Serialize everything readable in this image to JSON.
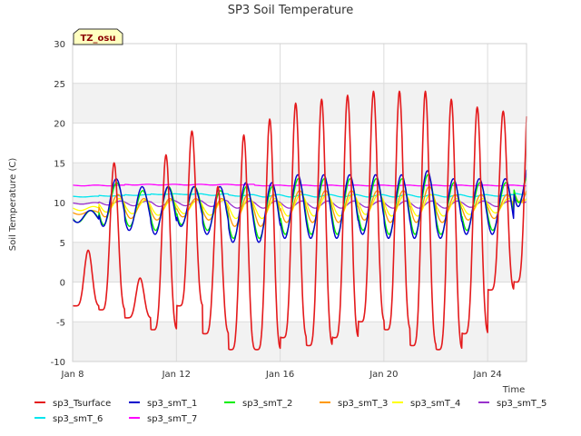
{
  "chart_data": {
    "type": "line",
    "title": "SP3 Soil Temperature",
    "xlabel": "Time",
    "ylabel": "Soil Temperature (C)",
    "badge": "TZ_osu",
    "ylim": [
      -10,
      30
    ],
    "yticks": [
      -10,
      -5,
      0,
      5,
      10,
      15,
      20,
      25,
      30
    ],
    "xlim": [
      8.0,
      25.5
    ],
    "xticks": [
      {
        "value": 8,
        "label": "Jan 8"
      },
      {
        "value": 12,
        "label": "Jan 12"
      },
      {
        "value": 16,
        "label": "Jan 16"
      },
      {
        "value": 20,
        "label": "Jan 20"
      },
      {
        "value": 24,
        "label": "Jan 24"
      }
    ],
    "grid": true,
    "legend_position": "bottom",
    "days": [
      8,
      9,
      10,
      11,
      12,
      13,
      14,
      15,
      16,
      17,
      18,
      19,
      20,
      21,
      22,
      23,
      24,
      25
    ],
    "series": [
      {
        "name": "sp3_Tsurface",
        "color": "#e41a1c",
        "daily_max": [
          4,
          15,
          0.5,
          16,
          19,
          12,
          18.5,
          20.5,
          22.5,
          23,
          23.5,
          24,
          24,
          24,
          23,
          22,
          21.5,
          26
        ],
        "daily_min": [
          -3,
          -3.5,
          -4.5,
          -6,
          -3,
          -6.5,
          -8.5,
          -8.5,
          -7,
          -8,
          -7,
          -5,
          -6,
          -8,
          -8.5,
          -6.5,
          -1,
          0
        ]
      },
      {
        "name": "sp3_smT_1",
        "color": "#0000cc",
        "daily_max": [
          9,
          13,
          12,
          12,
          12,
          12,
          12.5,
          12.5,
          13.5,
          13.5,
          13.5,
          13.5,
          13.5,
          14,
          13,
          13,
          13,
          16
        ],
        "daily_min": [
          7.5,
          7,
          6.5,
          6,
          7,
          6,
          5,
          5,
          5.5,
          5.5,
          5.5,
          6,
          5.5,
          5.5,
          5.5,
          6,
          6,
          9.5
        ]
      },
      {
        "name": "sp3_smT_2",
        "color": "#00ee00",
        "daily_max": [
          9,
          12.5,
          11.5,
          12,
          12,
          11.5,
          12,
          12,
          13,
          13,
          13,
          13,
          13,
          13.5,
          12.5,
          12.5,
          12.5,
          15.5
        ],
        "daily_min": [
          7.5,
          7.2,
          7,
          6.5,
          7.2,
          6.5,
          5.5,
          5.5,
          6,
          6,
          6,
          6.5,
          6,
          6,
          6,
          6.5,
          6.5,
          10
        ]
      },
      {
        "name": "sp3_smT_3",
        "color": "#ff9900",
        "daily_max": [
          9,
          11,
          10.5,
          10.5,
          10.5,
          10.5,
          11,
          11,
          11.5,
          11.5,
          11.5,
          11.5,
          11.5,
          12,
          11,
          11,
          11,
          13
        ],
        "daily_min": [
          8.5,
          8.2,
          8,
          7.8,
          8.2,
          7.8,
          7,
          7,
          7.5,
          7.5,
          7.5,
          7.8,
          7.5,
          7.5,
          7.5,
          7.8,
          8,
          10
        ]
      },
      {
        "name": "sp3_smT_4",
        "color": "#ffff00",
        "daily_max": [
          9.5,
          10.5,
          10.3,
          10.3,
          10.3,
          10.3,
          10.5,
          10.5,
          11,
          11,
          11,
          11,
          11,
          11,
          10.5,
          10.5,
          10.5,
          11.5
        ],
        "daily_min": [
          9,
          8.8,
          8.6,
          8.4,
          8.6,
          8.4,
          8,
          8,
          8.3,
          8.3,
          8.3,
          8.5,
          8.3,
          8.3,
          8.3,
          8.5,
          8.7,
          10
        ]
      },
      {
        "name": "sp3_smT_5",
        "color": "#9932cc",
        "daily_max": [
          10,
          10.2,
          10.2,
          10.3,
          10.3,
          10.3,
          10.2,
          10.2,
          10.2,
          10.2,
          10.2,
          10.2,
          10.2,
          10.2,
          10.2,
          10.2,
          10.2,
          10.5
        ],
        "daily_min": [
          9.8,
          9.7,
          9.6,
          9.5,
          9.6,
          9.5,
          9.3,
          9.3,
          9.3,
          9.3,
          9.3,
          9.4,
          9.3,
          9.3,
          9.3,
          9.4,
          9.5,
          10
        ]
      },
      {
        "name": "sp3_smT_6",
        "color": "#00e5ee",
        "daily_max": [
          10.8,
          10.9,
          11,
          11.1,
          11.1,
          11.1,
          11,
          11,
          11,
          11,
          11,
          11,
          11,
          11,
          11,
          11,
          11,
          11.2
        ],
        "daily_min": [
          10.7,
          10.8,
          10.9,
          11,
          11,
          10.9,
          10.8,
          10.7,
          10.7,
          10.7,
          10.7,
          10.7,
          10.7,
          10.7,
          10.7,
          10.7,
          10.8,
          11
        ]
      },
      {
        "name": "sp3_smT_7",
        "color": "#ff00ff",
        "daily_max": [
          12.2,
          12.2,
          12.3,
          12.3,
          12.3,
          12.3,
          12.3,
          12.2,
          12.2,
          12.2,
          12.2,
          12.2,
          12.2,
          12.2,
          12.2,
          12.2,
          12.2,
          12.2
        ],
        "daily_min": [
          12.1,
          12.1,
          12.2,
          12.2,
          12.2,
          12.2,
          12.2,
          12.1,
          12.1,
          12.1,
          12.1,
          12.1,
          12.1,
          12.1,
          12.1,
          12.1,
          12.1,
          12.1
        ]
      }
    ]
  }
}
